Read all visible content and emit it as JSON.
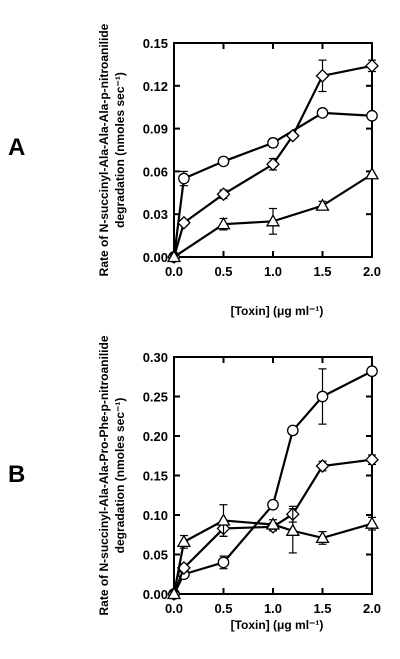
{
  "chart_data": [
    {
      "type": "line",
      "panel_label": "A",
      "xlabel": "[Toxin] (μg ml⁻¹)",
      "ylabel_line1": "Rate of N-succinyl-Ala-Ala-Ala-p-nitroanilide",
      "ylabel_line2": "degradation (nmoles sec⁻¹)",
      "xlim": [
        0,
        2.0
      ],
      "ylim": [
        0,
        0.15
      ],
      "xticks": [
        "0.0",
        "0.5",
        "1.0",
        "1.5",
        "2.0"
      ],
      "xtick_values": [
        0,
        0.5,
        1.0,
        1.5,
        2.0
      ],
      "yticks": [
        "0.00",
        "0.03",
        "0.06",
        "0.09",
        "0.12",
        "0.15"
      ],
      "ytick_values": [
        0,
        0.03,
        0.06,
        0.09,
        0.12,
        0.15
      ],
      "series": [
        {
          "marker": "circle",
          "points": [
            [
              0,
              0
            ],
            [
              0.1,
              0.055
            ],
            [
              0.5,
              0.067
            ],
            [
              1.0,
              0.08
            ],
            [
              1.5,
              0.101
            ],
            [
              2.0,
              0.099
            ]
          ],
          "errors": [
            0,
            0.005,
            0,
            0.003,
            0.002,
            0.002
          ]
        },
        {
          "marker": "diamond",
          "points": [
            [
              0,
              0
            ],
            [
              0.1,
              0.024
            ],
            [
              0.5,
              0.044
            ],
            [
              1.0,
              0.065
            ],
            [
              1.2,
              0.085
            ],
            [
              1.5,
              0.127
            ],
            [
              2.0,
              0.134
            ]
          ],
          "errors": [
            0,
            0.002,
            0.003,
            0.004,
            0,
            0.011,
            0.004
          ]
        },
        {
          "marker": "triangle",
          "points": [
            [
              0,
              0
            ],
            [
              0.5,
              0.023
            ],
            [
              1.0,
              0.025
            ],
            [
              1.5,
              0.036
            ],
            [
              2.0,
              0.058
            ]
          ],
          "errors": [
            0,
            0.004,
            0.009,
            0.003,
            0
          ]
        }
      ]
    },
    {
      "type": "line",
      "panel_label": "B",
      "xlabel": "[Toxin] (μg ml⁻¹)",
      "ylabel_line1": "Rate of N-succinyl-Ala-Ala-Pro-Phe-p-nitroanilide",
      "ylabel_line2": "degradation (nmoles sec⁻¹)",
      "xlim": [
        0,
        2.0
      ],
      "ylim": [
        0,
        0.3
      ],
      "xticks": [
        "0.0",
        "0.5",
        "1.0",
        "1.5",
        "2.0"
      ],
      "xtick_values": [
        0,
        0.5,
        1.0,
        1.5,
        2.0
      ],
      "yticks": [
        "0.00",
        "0.05",
        "0.10",
        "0.15",
        "0.20",
        "0.25",
        "0.30"
      ],
      "ytick_values": [
        0,
        0.05,
        0.1,
        0.15,
        0.2,
        0.25,
        0.3
      ],
      "series": [
        {
          "marker": "circle",
          "points": [
            [
              0,
              0
            ],
            [
              0.1,
              0.025
            ],
            [
              0.5,
              0.04
            ],
            [
              1.0,
              0.113
            ],
            [
              1.2,
              0.207
            ],
            [
              1.5,
              0.25
            ],
            [
              2.0,
              0.282
            ]
          ],
          "errors": [
            0,
            0.005,
            0.008,
            0,
            0.005,
            0.035,
            0.005
          ]
        },
        {
          "marker": "diamond",
          "points": [
            [
              0,
              0
            ],
            [
              0.1,
              0.033
            ],
            [
              0.5,
              0.083
            ],
            [
              1.0,
              0.085
            ],
            [
              1.2,
              0.101
            ],
            [
              1.5,
              0.162
            ],
            [
              2.0,
              0.17
            ]
          ],
          "errors": [
            0,
            0.005,
            0.01,
            0.005,
            0.01,
            0.006,
            0.006
          ]
        },
        {
          "marker": "triangle",
          "points": [
            [
              0,
              0
            ],
            [
              0.1,
              0.066
            ],
            [
              0.5,
              0.093
            ],
            [
              1.0,
              0.088
            ],
            [
              1.2,
              0.08
            ],
            [
              1.5,
              0.071
            ],
            [
              2.0,
              0.089
            ]
          ],
          "errors": [
            0,
            0.008,
            0.02,
            0.006,
            0.028,
            0.008,
            0.008
          ]
        }
      ]
    }
  ]
}
